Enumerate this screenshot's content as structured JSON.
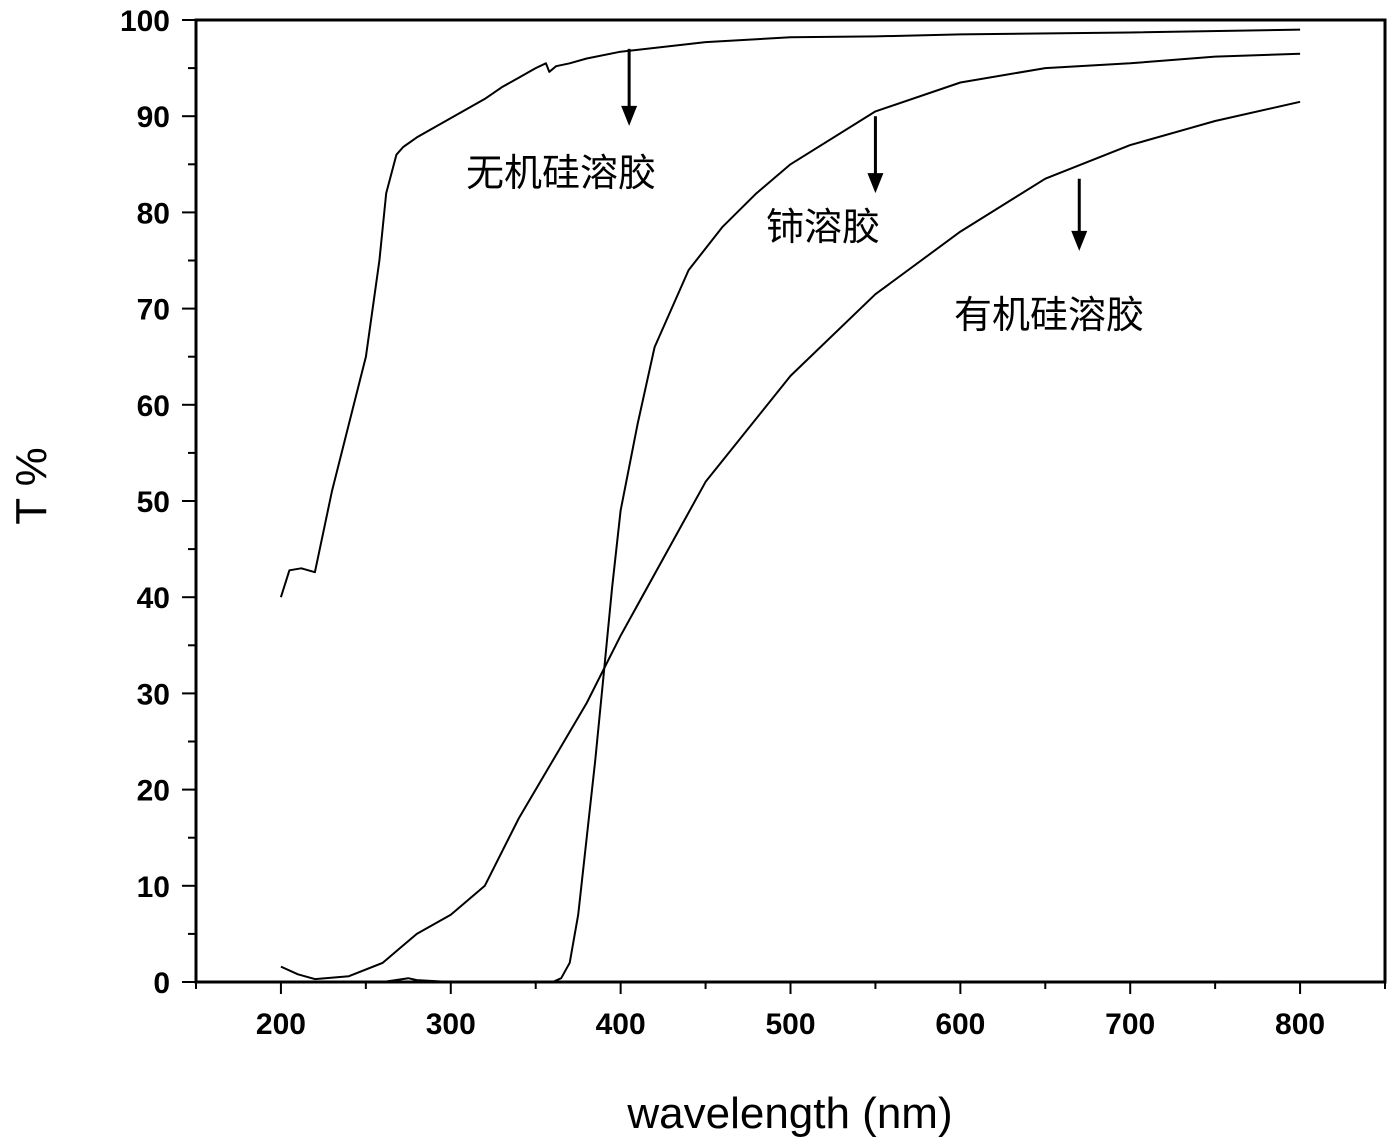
{
  "chart_data": {
    "type": "line",
    "xlabel": "wavelength (nm)",
    "ylabel": "T %",
    "xlim": [
      150,
      850
    ],
    "ylim": [
      0,
      100
    ],
    "x_ticks": [
      200,
      300,
      400,
      500,
      600,
      700,
      800
    ],
    "y_ticks": [
      0,
      10,
      20,
      30,
      40,
      50,
      60,
      70,
      80,
      90,
      100
    ],
    "grid": false,
    "legend": "none",
    "series": [
      {
        "name": "无机硅溶胶",
        "x": [
          200,
          205,
          212,
          220,
          230,
          240,
          250,
          258,
          262,
          268,
          272,
          280,
          290,
          300,
          310,
          320,
          330,
          340,
          350,
          356,
          358,
          362,
          370,
          380,
          400,
          450,
          500,
          550,
          600,
          700,
          800
        ],
        "y": [
          40,
          42.8,
          43,
          42.6,
          51,
          58,
          65,
          75,
          82,
          86,
          86.8,
          87.8,
          88.8,
          89.8,
          90.8,
          91.8,
          93,
          94,
          95,
          95.5,
          94.6,
          95.2,
          95.5,
          96,
          96.7,
          97.7,
          98.2,
          98.3,
          98.5,
          98.7,
          99
        ]
      },
      {
        "name": "铈溶胶",
        "x": [
          200,
          260,
          275,
          280,
          300,
          340,
          360,
          365,
          370,
          375,
          380,
          385,
          390,
          395,
          400,
          410,
          420,
          440,
          460,
          480,
          500,
          550,
          600,
          650,
          700,
          750,
          800
        ],
        "y": [
          0,
          0,
          0.4,
          0.2,
          0,
          0,
          0,
          0.4,
          2,
          7,
          15,
          23,
          32,
          41,
          49,
          58,
          66,
          74,
          78.5,
          82,
          85,
          90.5,
          93.5,
          95,
          95.5,
          96.2,
          96.5
        ]
      },
      {
        "name": "有机硅溶胶",
        "x": [
          200,
          210,
          220,
          240,
          260,
          270,
          280,
          300,
          320,
          340,
          360,
          380,
          400,
          450,
          500,
          550,
          600,
          650,
          700,
          750,
          800
        ],
        "y": [
          1.6,
          0.8,
          0.3,
          0.6,
          2,
          3.5,
          5,
          7,
          10,
          17,
          23,
          29,
          36,
          52,
          63,
          71.5,
          78,
          83.5,
          87,
          89.5,
          91.5
        ]
      }
    ],
    "annotations": [
      {
        "text": "无机硅溶胶",
        "arrow_x": 405,
        "arrow_y_from": 97,
        "arrow_y_to": 89
      },
      {
        "text": "铈溶胶",
        "arrow_x": 550,
        "arrow_y_from": 90,
        "arrow_y_to": 82
      },
      {
        "text": "有机硅溶胶",
        "arrow_x": 670,
        "arrow_y_from": 83.5,
        "arrow_y_to": 76
      }
    ]
  },
  "colors": {
    "line": "#000000",
    "background": "#ffffff"
  }
}
